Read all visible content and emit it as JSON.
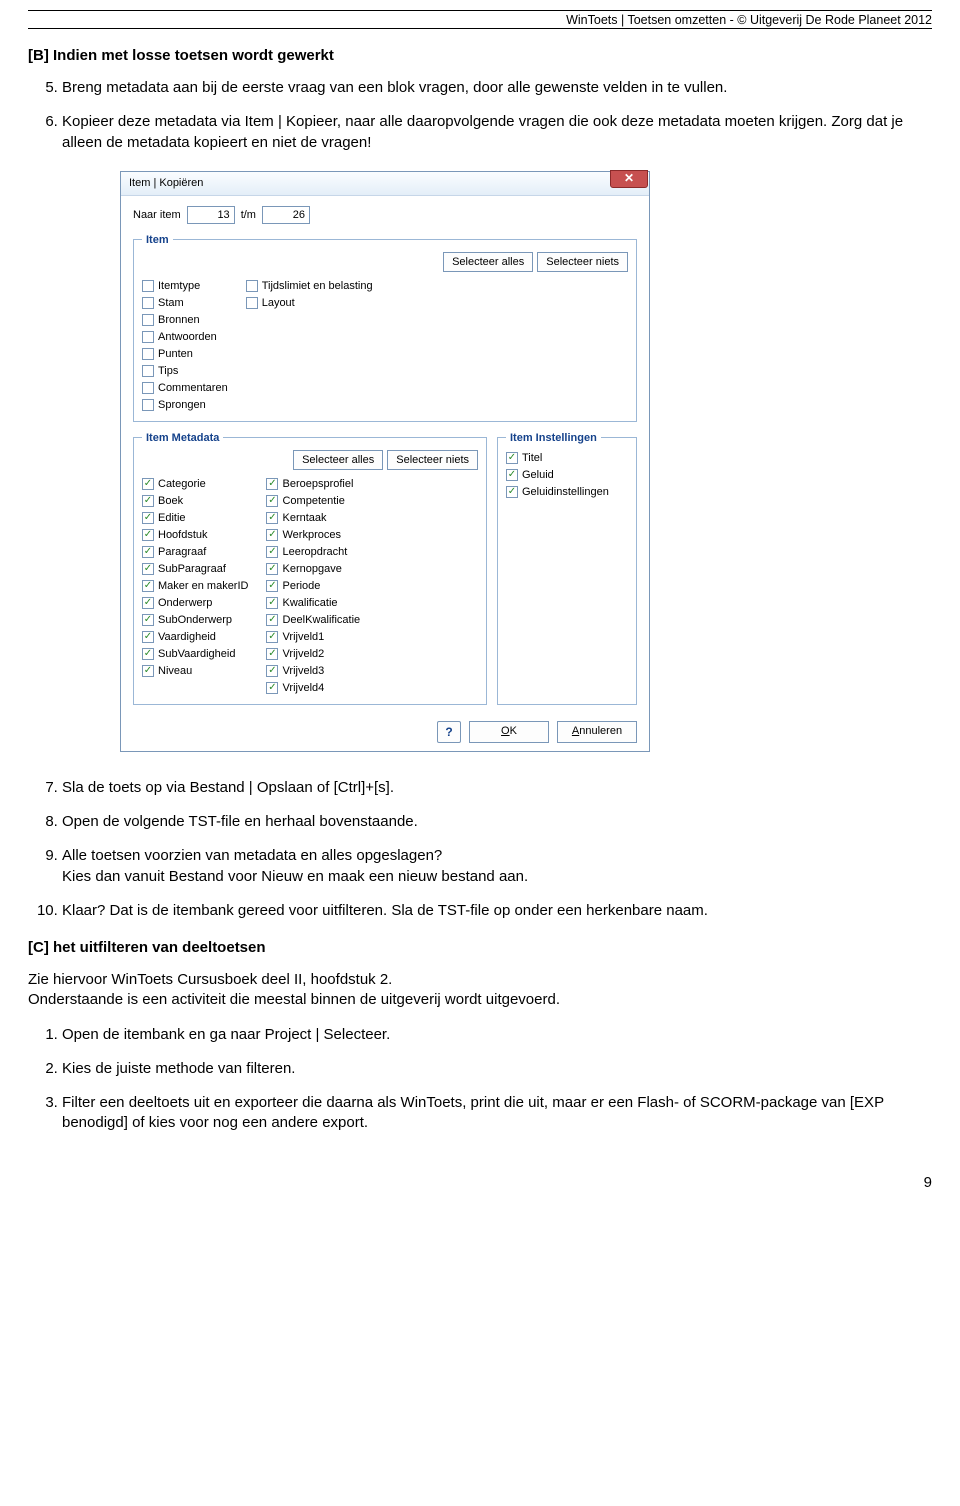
{
  "header": {
    "text": "WinToets | Toetsen omzetten - © Uitgeverij De Rode Planeet 2012"
  },
  "sectionB": {
    "title": "[B] Indien met losse toetsen wordt gewerkt",
    "start": 5,
    "items": [
      "Breng metadata aan bij de eerste vraag van een blok vragen, door alle gewenste velden in te vullen.",
      "Kopieer deze metadata via Item | Kopieer, naar alle daaropvolgende vragen die ook deze metadata moeten krijgen. Zorg dat je alleen de metadata kopieert en niet de vragen!"
    ],
    "itemsAfter": [
      "Sla de toets op via Bestand | Opslaan of [Ctrl]+[s].",
      "Open de volgende TST-file en herhaal bovenstaande.",
      "Alle toetsen voorzien van metadata en alles opgeslagen?\nKies dan vanuit Bestand voor Nieuw en maak een nieuw bestand aan.",
      "Klaar? Dat is de itembank gereed voor uitfilteren. Sla de TST-file op onder een herkenbare naam."
    ]
  },
  "sectionC": {
    "title": "[C] het uitfilteren van deeltoetsen",
    "intro1": "Zie hiervoor WinToets Cursusboek deel II, hoofdstuk 2.",
    "intro2": "Onderstaande is een activiteit die meestal binnen de uitgeverij wordt uitgevoerd.",
    "items": [
      "Open de itembank en ga naar Project | Selecteer.",
      "Kies de juiste methode van filteren.",
      "Filter een deeltoets uit en exporteer die daarna als WinToets, print die uit, maar er een Flash- of SCORM-package van [EXP benodigd] of kies voor nog een andere export."
    ]
  },
  "dialog": {
    "title": "Item | Kopiëren",
    "range": {
      "label1": "Naar item",
      "from": "13",
      "label2": "t/m",
      "to": "26"
    },
    "btn_select_all": "Selecteer alles",
    "btn_select_none": "Selecteer niets",
    "help_label": "?",
    "ok": "OK",
    "ok_u": "O",
    "cancel": "Annuleren",
    "cancel_u": "A",
    "groups": {
      "item": {
        "legend": "Item",
        "col1": [
          "Itemtype",
          "Stam",
          "Bronnen",
          "Antwoorden",
          "Punten",
          "Tips",
          "Commentaren",
          "Sprongen"
        ],
        "col2": [
          "Tijdslimiet en belasting",
          "Layout"
        ]
      },
      "metadata": {
        "legend": "Item Metadata",
        "col1": [
          "Categorie",
          "Boek",
          "Editie",
          "Hoofdstuk",
          "Paragraaf",
          "SubParagraaf",
          "Maker en makerID",
          "Onderwerp",
          "SubOnderwerp",
          "Vaardigheid",
          "SubVaardigheid",
          "Niveau"
        ],
        "col2": [
          "Beroepsprofiel",
          "Competentie",
          "Kerntaak",
          "Werkproces",
          "Leeropdracht",
          "Kernopgave",
          "Periode",
          "Kwalificatie",
          "DeelKwalificatie",
          "Vrijveld1",
          "Vrijveld2",
          "Vrijveld3",
          "Vrijveld4"
        ]
      },
      "settings": {
        "legend": "Item Instellingen",
        "col1": [
          "Titel",
          "Geluid",
          "Geluidinstellingen"
        ]
      }
    }
  },
  "pageNumber": "9"
}
